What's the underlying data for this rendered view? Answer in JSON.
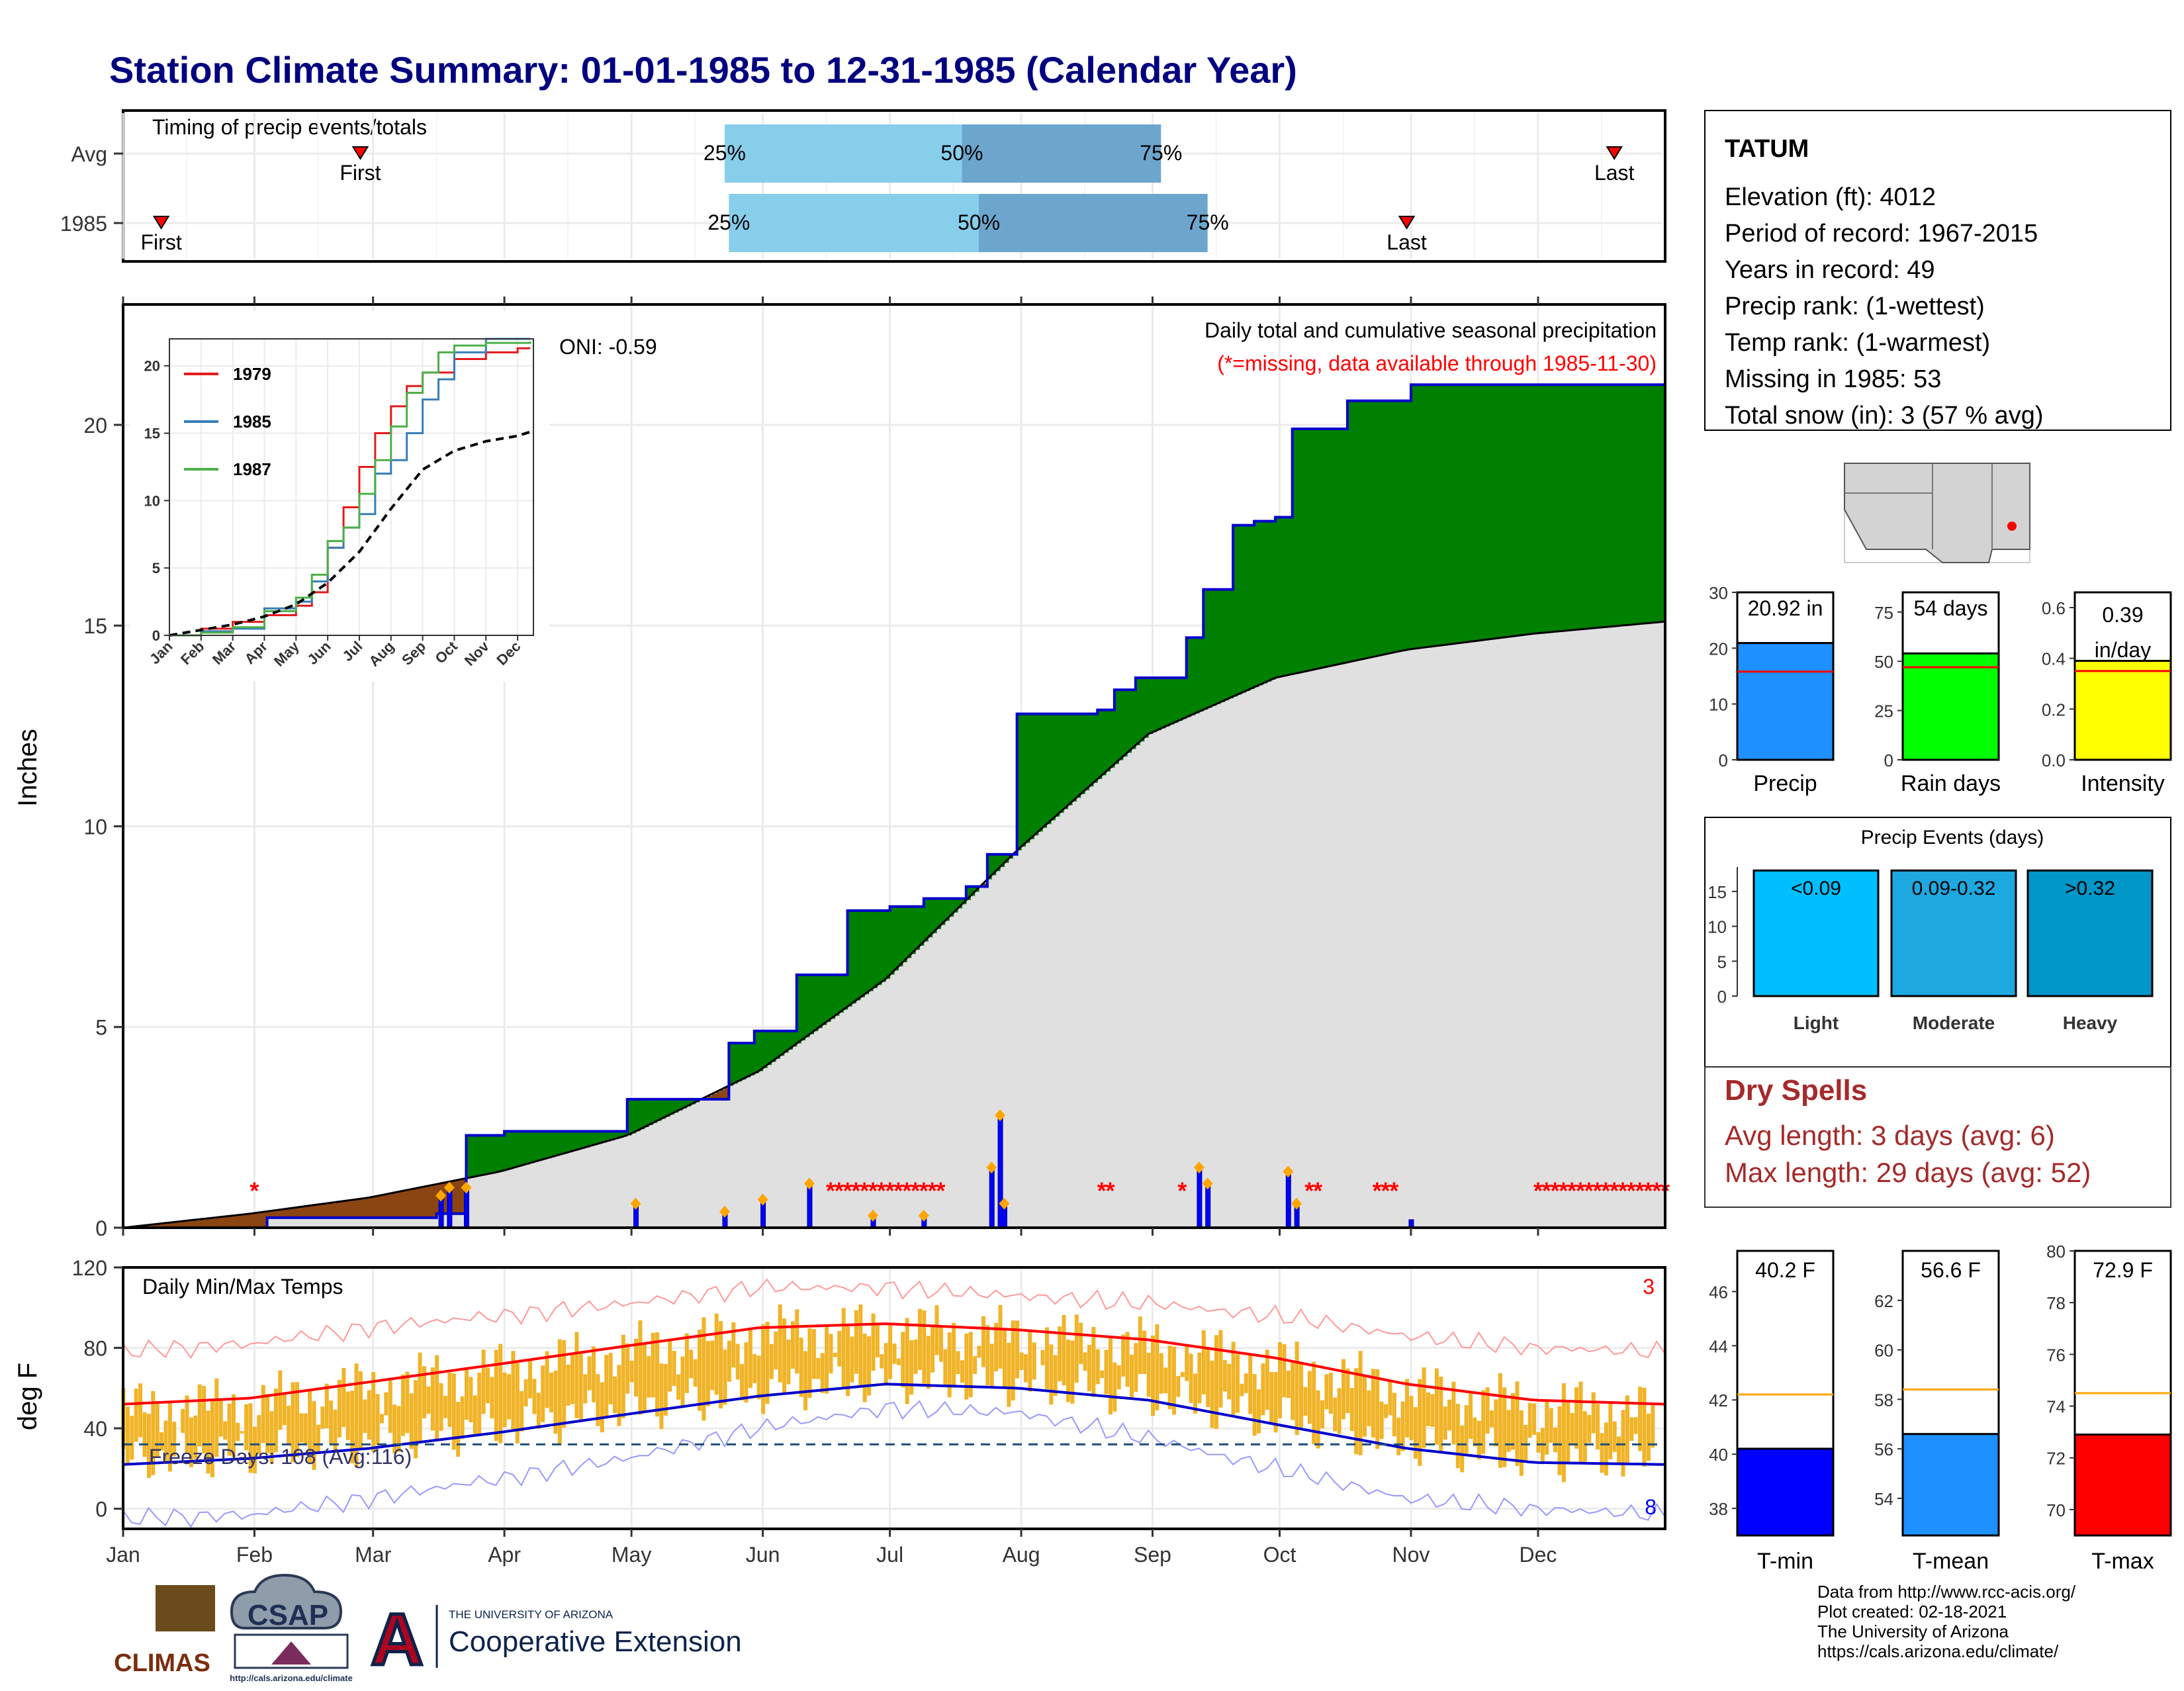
{
  "title": "Station Climate Summary: 01-01-1985 to 12-31-1985 (Calendar Year)",
  "months": [
    "Jan",
    "Feb",
    "Mar",
    "Apr",
    "May",
    "Jun",
    "Jul",
    "Aug",
    "Sep",
    "Oct",
    "Nov",
    "Dec"
  ],
  "timing_panel": {
    "label": "Timing of precip events/totals",
    "rows": [
      {
        "name": "Avg",
        "first_day": 57,
        "last_day": 353,
        "p25_day": 143,
        "p50_day": 199,
        "p75_day": 246,
        "first_label": "First",
        "last_label": "Last",
        "p25_label": "25%",
        "p50_label": "50%",
        "p75_label": "75%"
      },
      {
        "name": "1985",
        "first_day": 10,
        "last_day": 304,
        "p25_day": 144,
        "p50_day": 203,
        "p75_day": 257,
        "first_label": "First",
        "last_label": "Last",
        "p25_label": "25%",
        "p50_label": "50%",
        "p75_label": "75%"
      }
    ]
  },
  "precip_panel": {
    "ylabel": "Inches",
    "oni_label": "ONI: -0.59",
    "caption": "Daily total and cumulative seasonal precipitation",
    "missing_note": "(*=missing, data available through 1985-11-30)",
    "yticks": [
      0,
      5,
      10,
      15,
      20
    ],
    "ylim": [
      0,
      23
    ],
    "colors": {
      "above": "#008000",
      "below": "#8B4513",
      "avg_fill": "#e0e0e0",
      "line": "#0000cc",
      "bar": "#0000ff"
    }
  },
  "chart_data": [
    {
      "type": "area",
      "title": "Daily total and cumulative seasonal precipitation",
      "ylabel": "Inches",
      "ylim": [
        0,
        23
      ],
      "series": [
        {
          "name": "1985",
          "x_day": [
            1,
            35,
            75,
            82,
            91,
            120,
            144,
            150,
            160,
            172,
            182,
            190,
            200,
            205,
            212,
            231,
            235,
            240,
            252,
            256,
            263,
            268,
            273,
            277,
            290,
            305,
            365
          ],
          "values": [
            0.0,
            0.25,
            0.35,
            2.3,
            2.4,
            3.2,
            4.6,
            4.9,
            6.3,
            7.9,
            8.0,
            8.2,
            8.5,
            9.3,
            12.8,
            12.9,
            13.4,
            13.7,
            14.7,
            15.9,
            17.5,
            17.6,
            17.7,
            19.9,
            20.6,
            21.0,
            21.0
          ]
        },
        {
          "name": "Avg",
          "x_day": [
            1,
            31,
            59,
            90,
            120,
            151,
            181,
            212,
            243,
            273,
            304,
            334,
            365
          ],
          "values": [
            0.0,
            0.35,
            0.75,
            1.4,
            2.3,
            3.9,
            6.2,
            9.4,
            12.3,
            13.7,
            14.4,
            14.8,
            15.1
          ]
        }
      ],
      "daily_precip": [
        {
          "day": 76,
          "in": 0.8
        },
        {
          "day": 78,
          "in": 1.0
        },
        {
          "day": 82,
          "in": 1.0
        },
        {
          "day": 122,
          "in": 0.6
        },
        {
          "day": 143,
          "in": 0.4
        },
        {
          "day": 152,
          "in": 0.7
        },
        {
          "day": 163,
          "in": 1.1
        },
        {
          "day": 178,
          "in": 0.3
        },
        {
          "day": 190,
          "in": 0.3
        },
        {
          "day": 206,
          "in": 1.5
        },
        {
          "day": 208,
          "in": 2.8
        },
        {
          "day": 209,
          "in": 0.6
        },
        {
          "day": 255,
          "in": 1.5
        },
        {
          "day": 257,
          "in": 1.1
        },
        {
          "day": 276,
          "in": 1.4
        },
        {
          "day": 278,
          "in": 0.6
        },
        {
          "day": 305,
          "in": 0.2
        }
      ]
    },
    {
      "type": "line",
      "ylim": [
        0,
        22
      ],
      "xticks": [
        "Jan",
        "Feb",
        "Mar",
        "Apr",
        "May",
        "Jun",
        "Jul",
        "Aug",
        "Sep",
        "Oct",
        "Nov",
        "Dec"
      ],
      "yticks": [
        0,
        5,
        10,
        15,
        20
      ],
      "series": [
        {
          "name": "1979",
          "color": "#e41a1c",
          "x_month": [
            0,
            1,
            2,
            3,
            4,
            4.5,
            5,
            5.5,
            6,
            6.5,
            7,
            7.5,
            8,
            9,
            10,
            11,
            11.4
          ],
          "values": [
            0,
            0.5,
            1.0,
            1.5,
            2.2,
            3.2,
            6.5,
            9.5,
            12.5,
            15,
            17,
            18.5,
            19.5,
            20.5,
            21.0,
            21.3,
            21.3
          ]
        },
        {
          "name": "1985",
          "color": "#377eb8",
          "x_month": [
            0,
            1,
            2,
            3,
            4,
            4.5,
            5,
            5.5,
            6,
            6.5,
            7,
            7.5,
            8,
            8.5,
            9,
            10,
            11.4
          ],
          "values": [
            0,
            0.3,
            0.5,
            2.0,
            2.5,
            4.0,
            6.5,
            8.0,
            9.0,
            12,
            13.0,
            15.0,
            17.5,
            19,
            21.0,
            22.0,
            22.0
          ]
        },
        {
          "name": "1987",
          "color": "#4daf4a",
          "x_month": [
            0,
            1,
            2,
            3,
            4,
            4.5,
            5,
            5.5,
            6,
            6.5,
            7,
            7.5,
            8,
            8.5,
            9,
            10,
            11.4
          ],
          "values": [
            0,
            0.2,
            0.6,
            1.8,
            2.8,
            4.5,
            7.0,
            8.0,
            10.5,
            13,
            15.5,
            18.0,
            19.5,
            21,
            21.5,
            21.7,
            21.8
          ]
        },
        {
          "name": "Avg",
          "color": "#000000",
          "x_month": [
            0,
            1,
            2,
            3,
            4,
            5,
            6,
            7,
            8,
            9,
            10,
            11,
            11.4
          ],
          "values": [
            0,
            0.4,
            0.8,
            1.4,
            2.3,
            3.9,
            6.2,
            9.4,
            12.3,
            13.7,
            14.4,
            14.8,
            15.1
          ]
        }
      ]
    },
    {
      "type": "bar",
      "title": "Daily Min/Max Temps",
      "ylabel": "deg F",
      "ylim": [
        -10,
        120
      ],
      "yticks": [
        0,
        40,
        80,
        120
      ],
      "freeze_label": "Freeze Days: 108 (Avg:116)",
      "corner_top": "3",
      "corner_bottom": "8",
      "freeze_line": 32,
      "series": [
        {
          "name": "Avg Max",
          "x_day": [
            1,
            31,
            59,
            90,
            120,
            151,
            181,
            212,
            243,
            273,
            304,
            334,
            365
          ],
          "values": [
            52,
            55,
            63,
            72,
            81,
            90,
            92,
            89,
            84,
            75,
            62,
            54,
            52
          ]
        },
        {
          "name": "Avg Min",
          "x_day": [
            1,
            31,
            59,
            90,
            120,
            151,
            181,
            212,
            243,
            273,
            304,
            334,
            365
          ],
          "values": [
            22,
            25,
            30,
            38,
            47,
            56,
            62,
            60,
            54,
            42,
            30,
            23,
            22
          ]
        },
        {
          "name": "Record Max",
          "x_day": [
            1,
            31,
            59,
            90,
            120,
            151,
            181,
            212,
            243,
            273,
            304,
            334,
            365
          ],
          "values": [
            78,
            82,
            90,
            96,
            102,
            110,
            110,
            106,
            102,
            96,
            86,
            80,
            78
          ]
        },
        {
          "name": "Record Min",
          "x_day": [
            1,
            31,
            59,
            90,
            120,
            151,
            181,
            212,
            243,
            273,
            304,
            334,
            365
          ],
          "values": [
            -5,
            -3,
            5,
            15,
            25,
            40,
            50,
            48,
            35,
            20,
            5,
            0,
            -3
          ]
        }
      ]
    },
    {
      "type": "bar",
      "categories": [
        "Precip",
        "Rain days",
        "Intensity"
      ],
      "values": [
        20.92,
        54,
        0.39
      ],
      "averages": [
        15.8,
        47,
        0.35
      ],
      "labels": [
        "20.92 in",
        "54 days",
        "0.39 in/day"
      ],
      "ylims": [
        [
          0,
          30
        ],
        [
          0,
          85
        ],
        [
          0,
          0.66
        ]
      ]
    },
    {
      "type": "bar",
      "title": "Precip Events (days)",
      "categories": [
        "Light",
        "Moderate",
        "Heavy"
      ],
      "bar_labels": [
        "<0.09",
        "0.09-0.32",
        ">0.32"
      ],
      "values": [
        18,
        18,
        18
      ],
      "ylim": [
        0,
        18.5
      ],
      "yticks": [
        0,
        5,
        10,
        15
      ]
    },
    {
      "type": "bar",
      "categories": [
        "T-min",
        "T-mean",
        "T-max"
      ],
      "values": [
        40.2,
        56.6,
        72.9
      ],
      "averages": [
        42.2,
        58.4,
        74.5
      ],
      "labels": [
        "40.2 F",
        "56.6 F",
        "72.9 F"
      ],
      "ylims": [
        [
          37,
          47.5
        ],
        [
          52.5,
          64
        ],
        [
          69,
          80
        ]
      ],
      "colors": [
        "#0000ff",
        "#1e90ff",
        "#ff0000"
      ]
    }
  ],
  "station": {
    "name": "TATUM",
    "lines": [
      "Elevation (ft): 4012",
      "Period of record: 1967-2015",
      "Years in record: 49",
      "Precip rank:  (1-wettest)",
      "Temp rank:  (1-warmest)",
      "Missing in 1985: 53",
      "Total snow (in): 3 (57 % avg)"
    ]
  },
  "dry_spells": {
    "title": "Dry Spells",
    "lines": [
      "Avg length: 3 days (avg: 6)",
      "Max length: 29 days (avg: 52)"
    ]
  },
  "footer": {
    "lines": [
      "Data from http://www.rcc-acis.org/",
      "Plot created: 02-18-2021",
      "The University of Arizona",
      "https://cals.arizona.edu/climate/"
    ],
    "logo_climas": "CLIMAS",
    "logo_csap": "CSAP",
    "logo_csap_url": "http://cals.arizona.edu/climate",
    "ua_small": "THE UNIVERSITY OF ARIZONA",
    "ua_big": "Cooperative Extension",
    "ua_letter": "A"
  }
}
